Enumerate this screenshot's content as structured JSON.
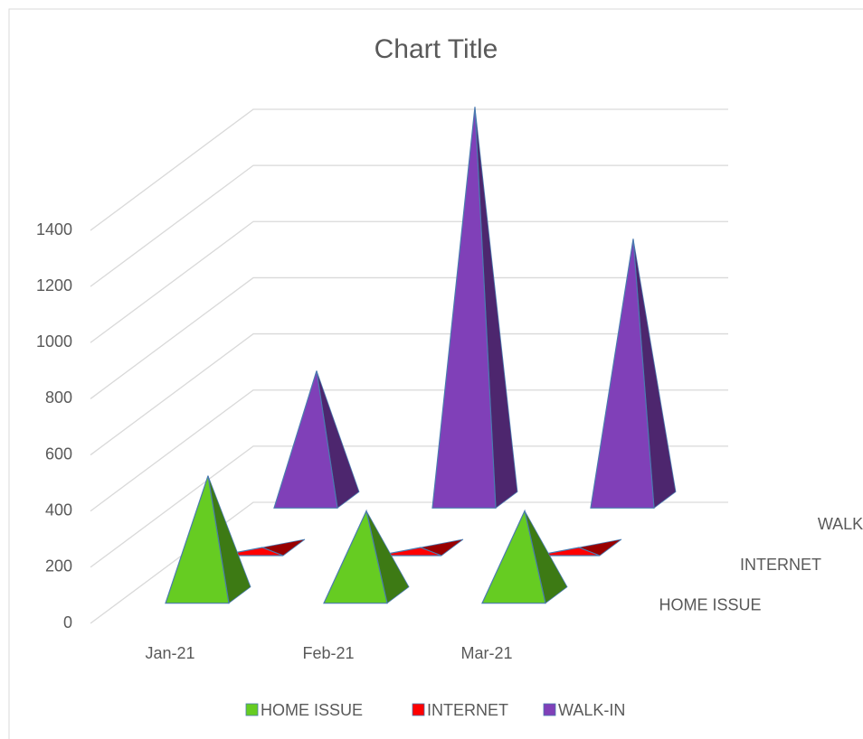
{
  "chart_data": {
    "type": "pyramid3d",
    "title": "Chart Title",
    "categories": [
      "Jan-21",
      "Feb-21",
      "Mar-21"
    ],
    "series": [
      {
        "name": "HOME ISSUE",
        "color": "#66cc22",
        "values": [
          425,
          300,
          300
        ]
      },
      {
        "name": "INTERNET",
        "color": "#ff0000",
        "values": [
          0,
          0,
          0
        ]
      },
      {
        "name": "WALK-IN",
        "color": "#8040b8",
        "values": [
          460,
          1400,
          930
        ]
      }
    ],
    "ylim": [
      0,
      1400
    ],
    "yticks": [
      0,
      200,
      400,
      600,
      800,
      1000,
      1200,
      1400
    ],
    "grid": true,
    "legend": "bottom"
  }
}
